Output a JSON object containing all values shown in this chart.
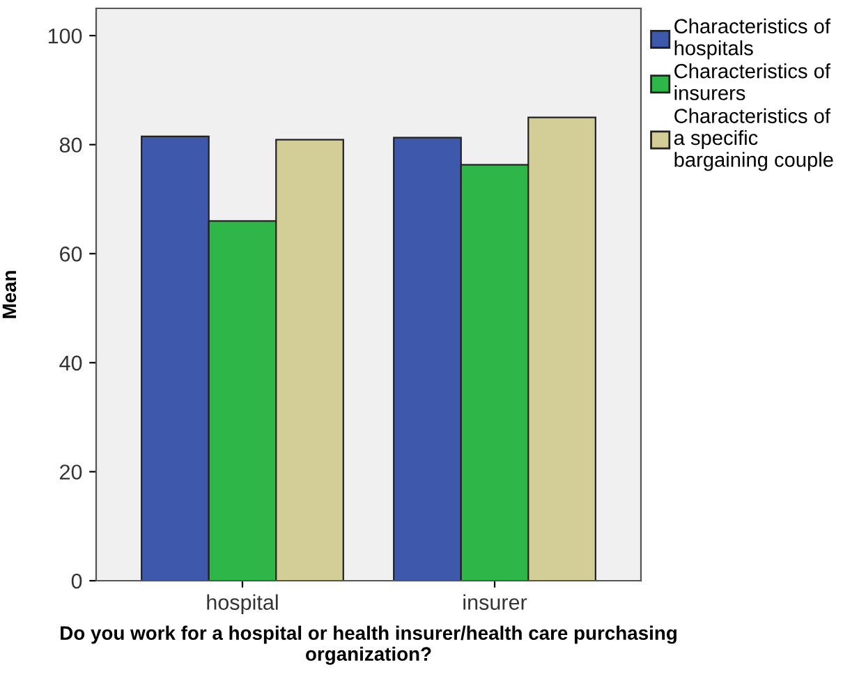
{
  "chart_data": {
    "type": "bar",
    "xlabel": "Do you work for a hospital or health insurer/health care purchasing organization?",
    "ylabel": "Mean",
    "categories": [
      "hospital",
      "insurer"
    ],
    "series": [
      {
        "name": "Characteristics of hospitals",
        "color": "#3e58ac",
        "values": [
          81.5,
          81.3
        ]
      },
      {
        "name": "Characteristics of insurers",
        "color": "#2fb648",
        "values": [
          66.0,
          76.3
        ]
      },
      {
        "name": "Characteristics of a specific bargaining couple",
        "color": "#d3ce97",
        "values": [
          80.9,
          85.0
        ]
      }
    ],
    "ylim": [
      0,
      105
    ],
    "yticks": [
      0,
      20,
      40,
      60,
      80,
      100
    ],
    "grid": false,
    "legend": "right"
  }
}
